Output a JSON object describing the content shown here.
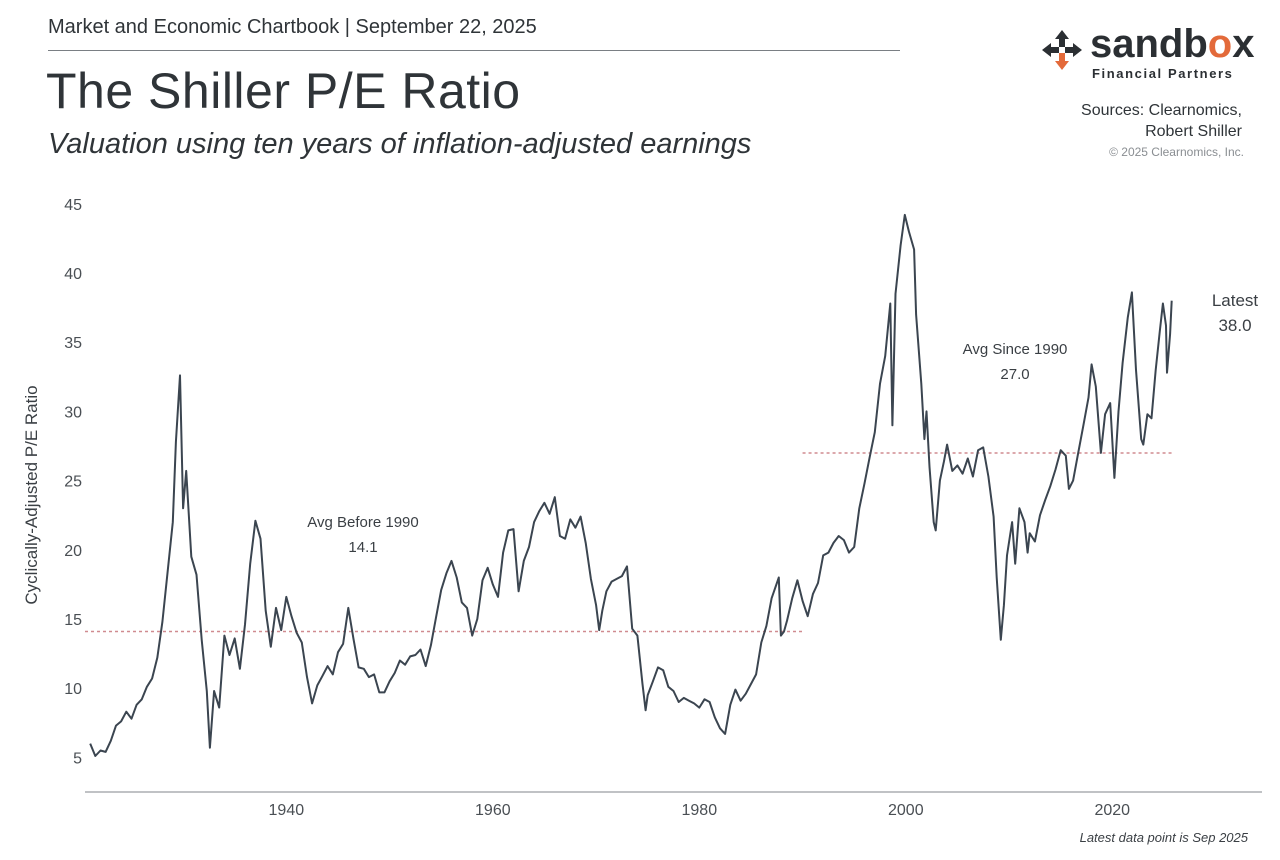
{
  "header": {
    "top_line": "Market and Economic Chartbook | September 22, 2025",
    "title": "The Shiller P/E Ratio",
    "subtitle": "Valuation using ten years of inflation-adjusted earnings"
  },
  "brand": {
    "name_prefix": "sandb",
    "name_o": "o",
    "name_suffix": "x",
    "tagline": "Financial Partners",
    "accent_color": "#e36a3a",
    "dark_color": "#2b2f33"
  },
  "sources": {
    "line1": "Sources: Clearnomics,",
    "line2": "Robert Shiller",
    "copyright": "© 2025 Clearnomics, Inc."
  },
  "footnote": "Latest data point is Sep 2025",
  "chart_data": {
    "type": "line",
    "ylabel": "Cyclically-Adjusted P/E Ratio",
    "xlabel": "",
    "xlim": [
      1920.5,
      2034.5
    ],
    "ylim": [
      2.5,
      46
    ],
    "yticks": [
      5,
      10,
      15,
      20,
      25,
      30,
      35,
      40,
      45
    ],
    "xticks": [
      1940,
      1960,
      1980,
      2000,
      2020
    ],
    "grid": false,
    "line_color": "#3b4550",
    "avg_line_color": "#d08b90",
    "series": [
      {
        "points": [
          [
            1921.0,
            6.0
          ],
          [
            1921.5,
            5.1
          ],
          [
            1922.0,
            5.5
          ],
          [
            1922.5,
            5.4
          ],
          [
            1923.0,
            6.2
          ],
          [
            1923.5,
            7.3
          ],
          [
            1924.0,
            7.6
          ],
          [
            1924.5,
            8.3
          ],
          [
            1925.0,
            7.8
          ],
          [
            1925.5,
            8.8
          ],
          [
            1926.0,
            9.2
          ],
          [
            1926.5,
            10.1
          ],
          [
            1927.0,
            10.7
          ],
          [
            1927.5,
            12.2
          ],
          [
            1928.0,
            14.8
          ],
          [
            1928.5,
            18.4
          ],
          [
            1929.0,
            22.0
          ],
          [
            1929.3,
            27.8
          ],
          [
            1929.7,
            32.6
          ],
          [
            1930.0,
            23.0
          ],
          [
            1930.3,
            25.7
          ],
          [
            1930.8,
            19.5
          ],
          [
            1931.3,
            18.2
          ],
          [
            1931.8,
            13.5
          ],
          [
            1932.3,
            9.8
          ],
          [
            1932.6,
            5.7
          ],
          [
            1933.0,
            9.8
          ],
          [
            1933.5,
            8.6
          ],
          [
            1934.0,
            13.8
          ],
          [
            1934.5,
            12.4
          ],
          [
            1935.0,
            13.6
          ],
          [
            1935.5,
            11.4
          ],
          [
            1936.0,
            14.6
          ],
          [
            1936.5,
            19.0
          ],
          [
            1937.0,
            22.1
          ],
          [
            1937.5,
            20.8
          ],
          [
            1938.0,
            15.6
          ],
          [
            1938.5,
            13.0
          ],
          [
            1939.0,
            15.8
          ],
          [
            1939.5,
            14.2
          ],
          [
            1940.0,
            16.6
          ],
          [
            1940.5,
            15.2
          ],
          [
            1941.0,
            14.0
          ],
          [
            1941.5,
            13.3
          ],
          [
            1942.0,
            10.8
          ],
          [
            1942.5,
            8.9
          ],
          [
            1943.0,
            10.2
          ],
          [
            1943.5,
            10.9
          ],
          [
            1944.0,
            11.6
          ],
          [
            1944.5,
            11.0
          ],
          [
            1945.0,
            12.6
          ],
          [
            1945.5,
            13.2
          ],
          [
            1946.0,
            15.8
          ],
          [
            1946.5,
            13.6
          ],
          [
            1947.0,
            11.5
          ],
          [
            1947.5,
            11.4
          ],
          [
            1948.0,
            10.8
          ],
          [
            1948.5,
            11.0
          ],
          [
            1949.0,
            9.7
          ],
          [
            1949.5,
            9.7
          ],
          [
            1950.0,
            10.5
          ],
          [
            1950.5,
            11.1
          ],
          [
            1951.0,
            12.0
          ],
          [
            1951.5,
            11.7
          ],
          [
            1952.0,
            12.3
          ],
          [
            1952.5,
            12.4
          ],
          [
            1953.0,
            12.8
          ],
          [
            1953.5,
            11.6
          ],
          [
            1954.0,
            13.1
          ],
          [
            1954.5,
            15.1
          ],
          [
            1955.0,
            17.1
          ],
          [
            1955.5,
            18.3
          ],
          [
            1956.0,
            19.2
          ],
          [
            1956.5,
            18.0
          ],
          [
            1957.0,
            16.2
          ],
          [
            1957.5,
            15.8
          ],
          [
            1958.0,
            13.8
          ],
          [
            1958.5,
            15.0
          ],
          [
            1959.0,
            17.8
          ],
          [
            1959.5,
            18.7
          ],
          [
            1960.0,
            17.5
          ],
          [
            1960.5,
            16.6
          ],
          [
            1961.0,
            19.8
          ],
          [
            1961.5,
            21.4
          ],
          [
            1962.0,
            21.5
          ],
          [
            1962.5,
            17.0
          ],
          [
            1963.0,
            19.2
          ],
          [
            1963.5,
            20.2
          ],
          [
            1964.0,
            22.0
          ],
          [
            1964.5,
            22.8
          ],
          [
            1965.0,
            23.4
          ],
          [
            1965.5,
            22.6
          ],
          [
            1966.0,
            23.8
          ],
          [
            1966.5,
            21.0
          ],
          [
            1967.0,
            20.8
          ],
          [
            1967.5,
            22.2
          ],
          [
            1968.0,
            21.6
          ],
          [
            1968.5,
            22.4
          ],
          [
            1969.0,
            20.5
          ],
          [
            1969.5,
            17.9
          ],
          [
            1970.0,
            16.0
          ],
          [
            1970.3,
            14.2
          ],
          [
            1970.6,
            15.6
          ],
          [
            1971.0,
            17.0
          ],
          [
            1971.5,
            17.7
          ],
          [
            1972.0,
            17.9
          ],
          [
            1972.5,
            18.1
          ],
          [
            1973.0,
            18.8
          ],
          [
            1973.5,
            14.3
          ],
          [
            1974.0,
            13.8
          ],
          [
            1974.5,
            10.3
          ],
          [
            1974.8,
            8.4
          ],
          [
            1975.0,
            9.5
          ],
          [
            1975.5,
            10.5
          ],
          [
            1976.0,
            11.5
          ],
          [
            1976.5,
            11.3
          ],
          [
            1977.0,
            10.1
          ],
          [
            1977.5,
            9.8
          ],
          [
            1978.0,
            9.0
          ],
          [
            1978.5,
            9.3
          ],
          [
            1979.0,
            9.1
          ],
          [
            1979.5,
            8.9
          ],
          [
            1980.0,
            8.6
          ],
          [
            1980.5,
            9.2
          ],
          [
            1981.0,
            9.0
          ],
          [
            1981.5,
            7.9
          ],
          [
            1982.0,
            7.1
          ],
          [
            1982.5,
            6.7
          ],
          [
            1983.0,
            8.8
          ],
          [
            1983.5,
            9.9
          ],
          [
            1984.0,
            9.1
          ],
          [
            1984.5,
            9.6
          ],
          [
            1985.0,
            10.3
          ],
          [
            1985.5,
            11.0
          ],
          [
            1986.0,
            13.3
          ],
          [
            1986.5,
            14.5
          ],
          [
            1987.0,
            16.5
          ],
          [
            1987.7,
            18.0
          ],
          [
            1987.9,
            13.8
          ],
          [
            1988.2,
            14.1
          ],
          [
            1988.5,
            14.9
          ],
          [
            1989.0,
            16.5
          ],
          [
            1989.5,
            17.8
          ],
          [
            1990.0,
            16.3
          ],
          [
            1990.5,
            15.2
          ],
          [
            1991.0,
            16.8
          ],
          [
            1991.5,
            17.6
          ],
          [
            1992.0,
            19.6
          ],
          [
            1992.5,
            19.8
          ],
          [
            1993.0,
            20.5
          ],
          [
            1993.5,
            21.0
          ],
          [
            1994.0,
            20.7
          ],
          [
            1994.5,
            19.8
          ],
          [
            1995.0,
            20.2
          ],
          [
            1995.5,
            23.0
          ],
          [
            1996.0,
            24.8
          ],
          [
            1996.5,
            26.7
          ],
          [
            1997.0,
            28.5
          ],
          [
            1997.5,
            32.0
          ],
          [
            1998.0,
            34.0
          ],
          [
            1998.5,
            37.8
          ],
          [
            1998.7,
            29.0
          ],
          [
            1999.0,
            38.5
          ],
          [
            1999.5,
            42.0
          ],
          [
            1999.9,
            44.2
          ],
          [
            2000.3,
            43.0
          ],
          [
            2000.8,
            41.7
          ],
          [
            2001.0,
            37.0
          ],
          [
            2001.5,
            32.0
          ],
          [
            2001.8,
            28.0
          ],
          [
            2002.0,
            30.0
          ],
          [
            2002.3,
            26.0
          ],
          [
            2002.7,
            22.0
          ],
          [
            2002.9,
            21.4
          ],
          [
            2003.3,
            25.0
          ],
          [
            2003.7,
            26.4
          ],
          [
            2004.0,
            27.6
          ],
          [
            2004.5,
            25.7
          ],
          [
            2005.0,
            26.1
          ],
          [
            2005.5,
            25.5
          ],
          [
            2006.0,
            26.6
          ],
          [
            2006.5,
            25.3
          ],
          [
            2007.0,
            27.2
          ],
          [
            2007.5,
            27.4
          ],
          [
            2008.0,
            25.3
          ],
          [
            2008.5,
            22.4
          ],
          [
            2008.8,
            18.0
          ],
          [
            2009.2,
            13.5
          ],
          [
            2009.5,
            16.0
          ],
          [
            2009.8,
            19.6
          ],
          [
            2010.3,
            22.0
          ],
          [
            2010.6,
            19.0
          ],
          [
            2011.0,
            23.0
          ],
          [
            2011.5,
            22.0
          ],
          [
            2011.8,
            19.8
          ],
          [
            2012.0,
            21.2
          ],
          [
            2012.5,
            20.6
          ],
          [
            2013.0,
            22.5
          ],
          [
            2013.5,
            23.6
          ],
          [
            2014.0,
            24.6
          ],
          [
            2014.5,
            25.8
          ],
          [
            2015.0,
            27.2
          ],
          [
            2015.5,
            26.8
          ],
          [
            2015.8,
            24.4
          ],
          [
            2016.2,
            25.0
          ],
          [
            2016.7,
            27.0
          ],
          [
            2017.2,
            29.0
          ],
          [
            2017.7,
            31.0
          ],
          [
            2018.0,
            33.4
          ],
          [
            2018.4,
            31.8
          ],
          [
            2018.9,
            27.0
          ],
          [
            2019.3,
            29.8
          ],
          [
            2019.8,
            30.6
          ],
          [
            2020.2,
            25.2
          ],
          [
            2020.6,
            30.0
          ],
          [
            2021.0,
            33.5
          ],
          [
            2021.5,
            36.8
          ],
          [
            2021.9,
            38.6
          ],
          [
            2022.3,
            33.0
          ],
          [
            2022.8,
            28.0
          ],
          [
            2023.0,
            27.6
          ],
          [
            2023.4,
            29.8
          ],
          [
            2023.8,
            29.5
          ],
          [
            2024.2,
            33.0
          ],
          [
            2024.6,
            35.8
          ],
          [
            2024.9,
            37.8
          ],
          [
            2025.2,
            36.2
          ],
          [
            2025.3,
            32.8
          ],
          [
            2025.6,
            35.6
          ],
          [
            2025.75,
            38.0
          ]
        ]
      }
    ],
    "averages": [
      {
        "label": "Avg Before 1990",
        "value_label": "14.1",
        "value": 14.1,
        "x_from": 1920.5,
        "x_to": 1990
      },
      {
        "label": "Avg Since 1990",
        "value_label": "27.0",
        "value": 27.0,
        "x_from": 1990,
        "x_to": 2025.75
      }
    ],
    "annotations": [
      {
        "id": "latest",
        "line1": "Latest",
        "line2": "38.0",
        "x": 2030,
        "y": 39.5
      }
    ]
  }
}
